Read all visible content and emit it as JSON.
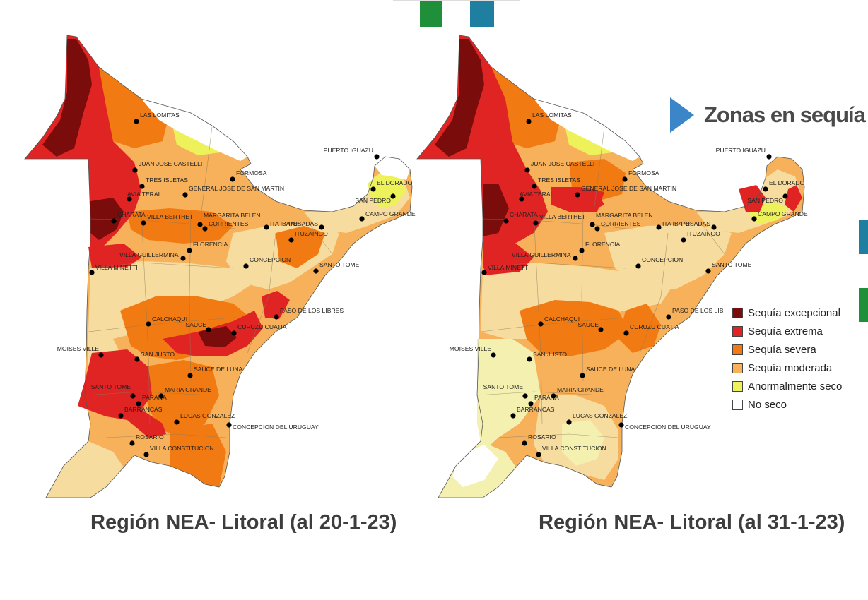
{
  "title": "Zonas en sequía",
  "colors": {
    "accent_blue": "#3a86c8",
    "deco_green": "#1f8f3a",
    "deco_teal": "#1f7fa0",
    "background": "#ffffff"
  },
  "legend": {
    "items": [
      {
        "label": "Sequía excepcional",
        "color": "#7a0c0c"
      },
      {
        "label": "Sequía extrema",
        "color": "#e02424"
      },
      {
        "label": "Sequía severa",
        "color": "#f27a12"
      },
      {
        "label": "Sequía moderada",
        "color": "#f6b15a"
      },
      {
        "label": "Anormalmente seco",
        "color": "#eef25a"
      },
      {
        "label": "No seco",
        "color": "#ffffff"
      }
    ]
  },
  "maps": [
    {
      "caption": "Región NEA- Litoral (al 20-1-23)",
      "cities": [
        "LAS LOMITAS",
        "JUAN JOSE CASTELLI",
        "FORMOSA",
        "TRES ISLETAS",
        "GENERAL JOSE DE SAN MARTIN",
        "AVIA TERAI",
        "CHARATA",
        "VILLA BERTHET",
        "MARGARITA BELEN",
        "CORRIENTES",
        "ITA IBATE",
        "POSADAS",
        "PUERTO IGUAZU",
        "EL DORADO",
        "SAN PEDRO",
        "CAMPO GRANDE",
        "ITUZAINGO",
        "FLORENCIA",
        "VILLA GUILLERMINA",
        "VILLA MINETTI",
        "CONCEPCION",
        "SANTO TOME",
        "PASO DE LOS LIBRES",
        "CALCHAQUI",
        "SAUCE",
        "CURUZU CUATIA",
        "MOISES VILLE",
        "SAN JUSTO",
        "SAUCE DE LUNA",
        "SANTO TOME",
        "PARANA",
        "MARIA GRANDE",
        "BARRANCAS",
        "LUCAS GONZALEZ",
        "CONCEPCION DEL URUGUAY",
        "ROSARIO",
        "VILLA CONSTITUCION"
      ]
    },
    {
      "caption": "Región NEA- Litoral (al 31-1-23)",
      "cities": [
        "LAS LOMITAS",
        "JUAN JOSE CASTELLI",
        "FORMOSA",
        "TRES ISLETAS",
        "GENERAL JOSE DE SAN MARTIN",
        "AVIA TERAI",
        "CHARATA",
        "VILLA BERTHET",
        "MARGARITA BELEN",
        "CORRIENTES",
        "ITA IBATE",
        "POSADAS",
        "PUERTO IGUAZU",
        "EL DORADO",
        "SAN PEDRO",
        "CAMPO GRANDE",
        "ITUZAINGO",
        "FLORENCIA",
        "VILLA GUILLERMINA",
        "VILLA MINETTI",
        "CONCEPCION",
        "SANTO TOME",
        "PASO DE LOS LIB",
        "CALCHAQUI",
        "SAUCE",
        "CURUZU CUATIA",
        "MOISES VILLE",
        "SAN JUSTO",
        "SAUCE DE LUNA",
        "SANTO TOME",
        "PARANA",
        "MARIA GRANDE",
        "BARRANCAS",
        "LUCAS GONZALEZ",
        "CONCEPCION DEL URUGUAY",
        "ROSARIO",
        "VILLA CONSTITUCION"
      ]
    }
  ]
}
